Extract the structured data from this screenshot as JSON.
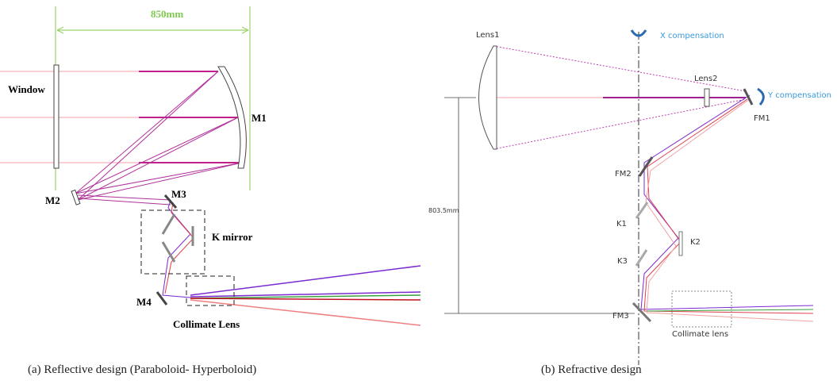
{
  "panel_a": {
    "labels": [
      "850mm",
      "Window",
      "M1",
      "M2",
      "M3",
      "K mirror",
      "M4",
      "Collimate Lens"
    ],
    "caption": "(a)  Reflective design (Paraboloid- Hyperboloid)"
  },
  "panel_b": {
    "labels": [
      "Lens1",
      "X compensation",
      "Lens2",
      "Y compensation",
      "FM1",
      "FM2",
      "K1",
      "K2",
      "K3",
      "FM3",
      "803.5mm",
      "Collimate lens"
    ],
    "caption": "(b)  Refractive design"
  }
}
